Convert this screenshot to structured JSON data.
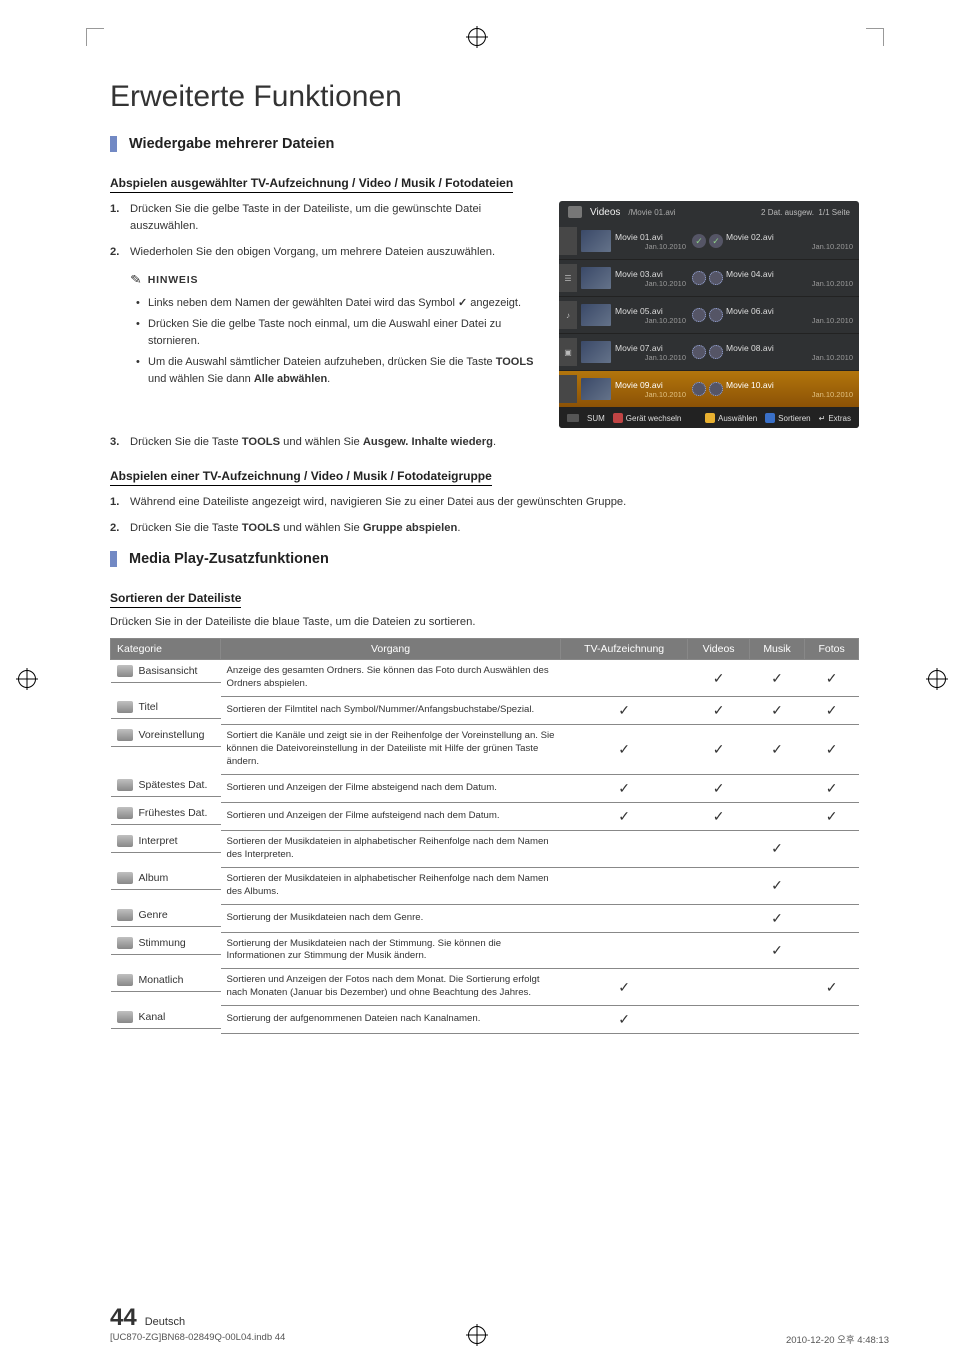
{
  "page": {
    "title": "Erweiterte Funktionen",
    "number": "44",
    "language": "Deutsch",
    "footer_left": "[UC870-ZG]BN68-02849Q-00L04.indb   44",
    "footer_right": "2010-12-20   오후 4:48:13"
  },
  "section1": {
    "title": "Wiedergabe mehrerer Dateien",
    "sub1": "Abspielen ausgewählter TV-Aufzeichnung / Video / Musik / Fotodateien",
    "steps": [
      "Drücken Sie die gelbe Taste in der Dateiliste, um die gewünschte Datei auszuwählen.",
      "Wiederholen Sie den obigen Vorgang, um mehrere Dateien auszuwählen."
    ],
    "note_label": "HINWEIS",
    "bullets": [
      {
        "pre": "Links neben dem Namen der gewählten Datei wird das Symbol ",
        "symbol": "✓",
        "post": " angezeigt."
      },
      {
        "text": "Drücken Sie die gelbe Taste noch einmal, um die Auswahl einer Datei zu stornieren."
      },
      {
        "pre": "Um die Auswahl sämtlicher Dateien aufzuheben, drücken Sie die Taste ",
        "bold1": "TOOLS",
        "mid": " und wählen Sie dann ",
        "bold2": "Alle abwählen",
        "post": "."
      }
    ],
    "step3_pre": "Drücken Sie die Taste ",
    "step3_bold1": "TOOLS",
    "step3_mid": " und wählen Sie ",
    "step3_bold2": "Ausgew. Inhalte wiederg",
    "step3_post": ".",
    "sub2": "Abspielen einer TV-Aufzeichnung / Video / Musik / Fotodateigruppe",
    "group_steps": [
      "Während eine Dateiliste angezeigt wird, navigieren Sie zu einer Datei aus der gewünschten Gruppe.",
      {
        "pre": "Drücken Sie die Taste ",
        "b1": "TOOLS",
        "mid": " und wählen Sie ",
        "b2": "Gruppe abspielen",
        "post": "."
      }
    ]
  },
  "tv": {
    "header_label": "Videos",
    "breadcrumb": "/Movie 01.avi",
    "right1": "2 Dat. ausgew.",
    "right2": "1/1 Seite",
    "items": [
      {
        "n": "Movie 01.avi",
        "d": "Jan.10.2010",
        "status": "check",
        "side": ""
      },
      {
        "n": "Movie 02.avi",
        "d": "Jan.10.2010",
        "status": "check",
        "side": ""
      },
      {
        "n": "Movie 03.avi",
        "d": "Jan.10.2010",
        "status": "load",
        "side": "☰"
      },
      {
        "n": "Movie 04.avi",
        "d": "Jan.10.2010",
        "status": "load",
        "side": ""
      },
      {
        "n": "Movie 05.avi",
        "d": "Jan.10.2010",
        "status": "load",
        "side": "♪"
      },
      {
        "n": "Movie 06.avi",
        "d": "Jan.10.2010",
        "status": "load",
        "side": ""
      },
      {
        "n": "Movie 07.avi",
        "d": "Jan.10.2010",
        "status": "load",
        "side": "▣"
      },
      {
        "n": "Movie 08.avi",
        "d": "Jan.10.2010",
        "status": "load",
        "side": ""
      },
      {
        "n": "Movie 09.avi",
        "d": "Jan.10.2010",
        "status": "load",
        "side": ""
      },
      {
        "n": "Movie 10.avi",
        "d": "Jan.10.2010",
        "status": "load",
        "side": ""
      }
    ],
    "footer": {
      "sum": "SUM",
      "a": "Gerät wechseln",
      "c": "Auswählen",
      "d": "Sortieren",
      "ret": "Extras"
    },
    "colors": {
      "panel_bg": "#2f3133",
      "highlight": "#b3760c"
    }
  },
  "section2": {
    "title": "Media Play-Zusatzfunktionen",
    "sub": "Sortieren der Dateiliste",
    "desc": "Drücken Sie in der Dateiliste die blaue Taste, um die Dateien zu sortieren.",
    "headers": [
      "Kategorie",
      "Vorgang",
      "TV-Aufzeichnung",
      "Videos",
      "Musik",
      "Fotos"
    ],
    "rows": [
      {
        "cat": "Basisansicht",
        "op": "Anzeige des gesamten Ordners. Sie können das Foto durch Auswählen des Ordners abspielen.",
        "c": [
          false,
          true,
          true,
          true
        ]
      },
      {
        "cat": "Titel",
        "op": "Sortieren der Filmtitel nach Symbol/Nummer/Anfangsbuchstabe/Spezial.",
        "c": [
          true,
          true,
          true,
          true
        ]
      },
      {
        "cat": "Voreinstellung",
        "op": "Sortiert die Kanäle und zeigt sie in der Reihenfolge der Voreinstellung an. Sie können die Dateivoreinstellung in der Dateiliste mit Hilfe der grünen Taste ändern.",
        "c": [
          true,
          true,
          true,
          true
        ]
      },
      {
        "cat": "Spätestes Dat.",
        "op": "Sortieren und Anzeigen der Filme absteigend nach dem Datum.",
        "c": [
          true,
          true,
          false,
          true
        ]
      },
      {
        "cat": "Frühestes Dat.",
        "op": "Sortieren und Anzeigen der Filme aufsteigend nach dem Datum.",
        "c": [
          true,
          true,
          false,
          true
        ]
      },
      {
        "cat": "Interpret",
        "op": "Sortieren der Musikdateien in alphabetischer Reihenfolge nach dem Namen des Interpreten.",
        "c": [
          false,
          false,
          true,
          false
        ]
      },
      {
        "cat": "Album",
        "op": "Sortieren der Musikdateien in alphabetischer Reihenfolge nach dem Namen des Albums.",
        "c": [
          false,
          false,
          true,
          false
        ]
      },
      {
        "cat": "Genre",
        "op": "Sortierung der Musikdateien nach dem Genre.",
        "c": [
          false,
          false,
          true,
          false
        ]
      },
      {
        "cat": "Stimmung",
        "op": "Sortierung der Musikdateien nach der Stimmung. Sie können die Informationen zur Stimmung der Musik ändern.",
        "c": [
          false,
          false,
          true,
          false
        ]
      },
      {
        "cat": "Monatlich",
        "op": "Sortieren und Anzeigen der Fotos nach dem Monat. Die Sortierung erfolgt nach Monaten (Januar bis Dezember) und ohne Beachtung des Jahres.",
        "c": [
          true,
          false,
          false,
          true
        ]
      },
      {
        "cat": "Kanal",
        "op": "Sortierung der aufgenommenen Dateien nach Kanalnamen.",
        "c": [
          true,
          false,
          false,
          false
        ]
      }
    ]
  }
}
